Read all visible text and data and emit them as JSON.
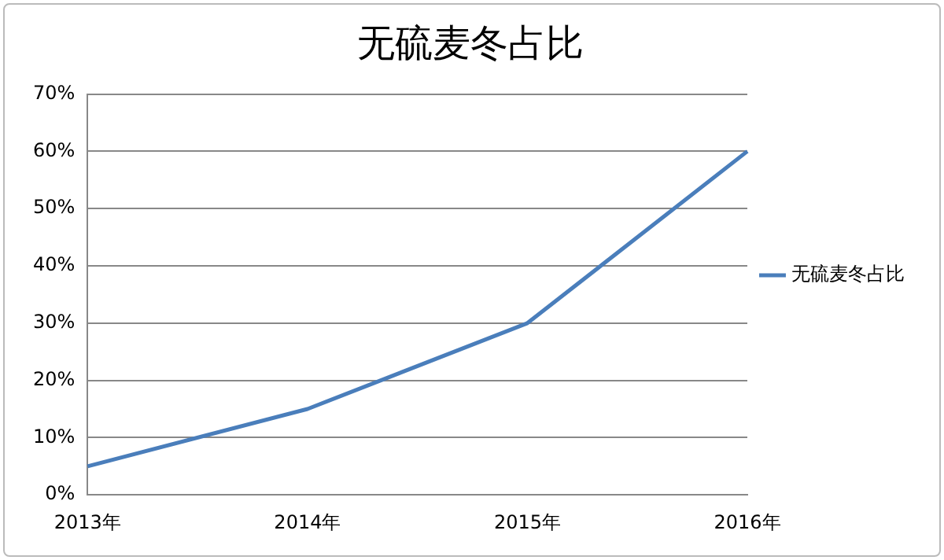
{
  "chart_data": {
    "type": "line",
    "title": "无硫麦冬占比",
    "categories": [
      "2013年",
      "2014年",
      "2015年",
      "2016年"
    ],
    "series": [
      {
        "name": "无硫麦冬占比",
        "color": "#4a7ebb",
        "values": [
          5,
          15,
          30,
          60
        ]
      }
    ],
    "ylim": [
      0,
      70
    ],
    "yticks": [
      {
        "value": 0,
        "label": "0%"
      },
      {
        "value": 10,
        "label": "10%"
      },
      {
        "value": 20,
        "label": "20%"
      },
      {
        "value": 30,
        "label": "30%"
      },
      {
        "value": 40,
        "label": "40%"
      },
      {
        "value": 50,
        "label": "50%"
      },
      {
        "value": 60,
        "label": "60%"
      },
      {
        "value": 70,
        "label": "70%"
      }
    ],
    "grid": "y",
    "legend": "right",
    "marker": "none",
    "line_style": "solid"
  }
}
